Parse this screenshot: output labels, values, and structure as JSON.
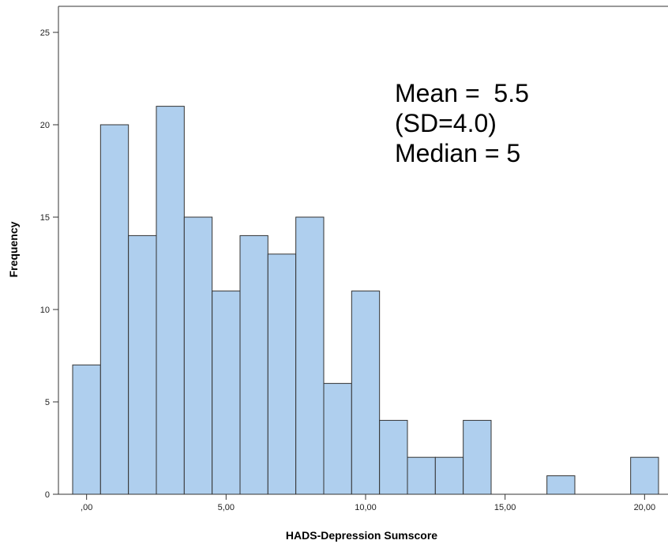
{
  "chart_data": {
    "type": "bar",
    "title": "",
    "xlabel": "HADS-Depression Sumscore",
    "ylabel": "Frequency",
    "x": [
      0,
      1,
      2,
      3,
      4,
      5,
      6,
      7,
      8,
      9,
      10,
      11,
      12,
      13,
      14,
      15,
      16,
      17,
      18,
      19,
      20
    ],
    "values": [
      7,
      20,
      14,
      21,
      15,
      11,
      14,
      13,
      15,
      6,
      11,
      4,
      2,
      2,
      4,
      0,
      0,
      1,
      0,
      0,
      2
    ],
    "xlim": [
      -0.5,
      20.5
    ],
    "ylim": [
      0,
      25
    ],
    "x_ticks": [
      0,
      5,
      10,
      15,
      20
    ],
    "x_tick_labels": [
      ",00",
      "5,00",
      "10,00",
      "15,00",
      "20,00"
    ],
    "y_ticks": [
      0,
      5,
      10,
      15,
      20,
      25
    ],
    "y_tick_labels": [
      "0",
      "5",
      "10",
      "15",
      "20",
      "25"
    ],
    "grid": false,
    "bar_color": "#afcfee",
    "bar_edge_color": "#333333",
    "annotations": [
      "Mean =  5.5",
      "(SD=4.0)",
      "Median = 5"
    ]
  }
}
